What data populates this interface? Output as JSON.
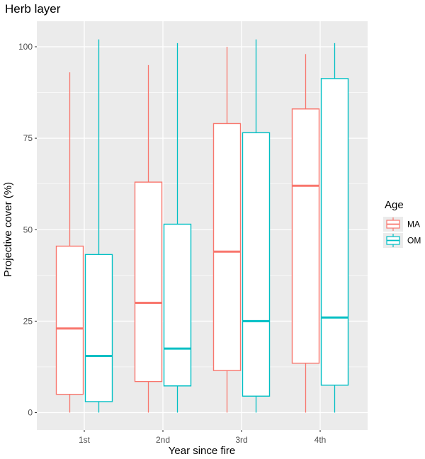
{
  "chart_data": {
    "type": "boxplot",
    "title": "Herb layer",
    "xlabel": "Year since fire",
    "ylabel": "Projective cover (%)",
    "categories": [
      "1st",
      "2nd",
      "3rd",
      "4th"
    ],
    "ylim": [
      -5,
      107
    ],
    "yticks": [
      0,
      25,
      50,
      75,
      100
    ],
    "grid": true,
    "legend": {
      "title": "Age",
      "position": "right",
      "entries": [
        "MA",
        "OM"
      ]
    },
    "series": [
      {
        "name": "MA",
        "color": "#F8766D",
        "boxes": [
          {
            "category": "1st",
            "min": 0,
            "q1": 5,
            "median": 23,
            "q3": 45.5,
            "max": 93
          },
          {
            "category": "2nd",
            "min": 0,
            "q1": 8.5,
            "median": 30,
            "q3": 63,
            "max": 95
          },
          {
            "category": "3rd",
            "min": 0,
            "q1": 11.5,
            "median": 44,
            "q3": 79,
            "max": 100
          },
          {
            "category": "4th",
            "min": 0,
            "q1": 13.5,
            "median": 62,
            "q3": 83,
            "max": 98
          }
        ]
      },
      {
        "name": "OM",
        "color": "#00BFC4",
        "boxes": [
          {
            "category": "1st",
            "min": 0,
            "q1": 3,
            "median": 15.5,
            "q3": 43.2,
            "max": 102
          },
          {
            "category": "2nd",
            "min": 0,
            "q1": 7.3,
            "median": 17.5,
            "q3": 51.5,
            "max": 101
          },
          {
            "category": "3rd",
            "min": 0,
            "q1": 4.5,
            "median": 25,
            "q3": 76.5,
            "max": 102
          },
          {
            "category": "4th",
            "min": 0,
            "q1": 7.5,
            "median": 26,
            "q3": 91.3,
            "max": 101
          }
        ]
      }
    ]
  }
}
